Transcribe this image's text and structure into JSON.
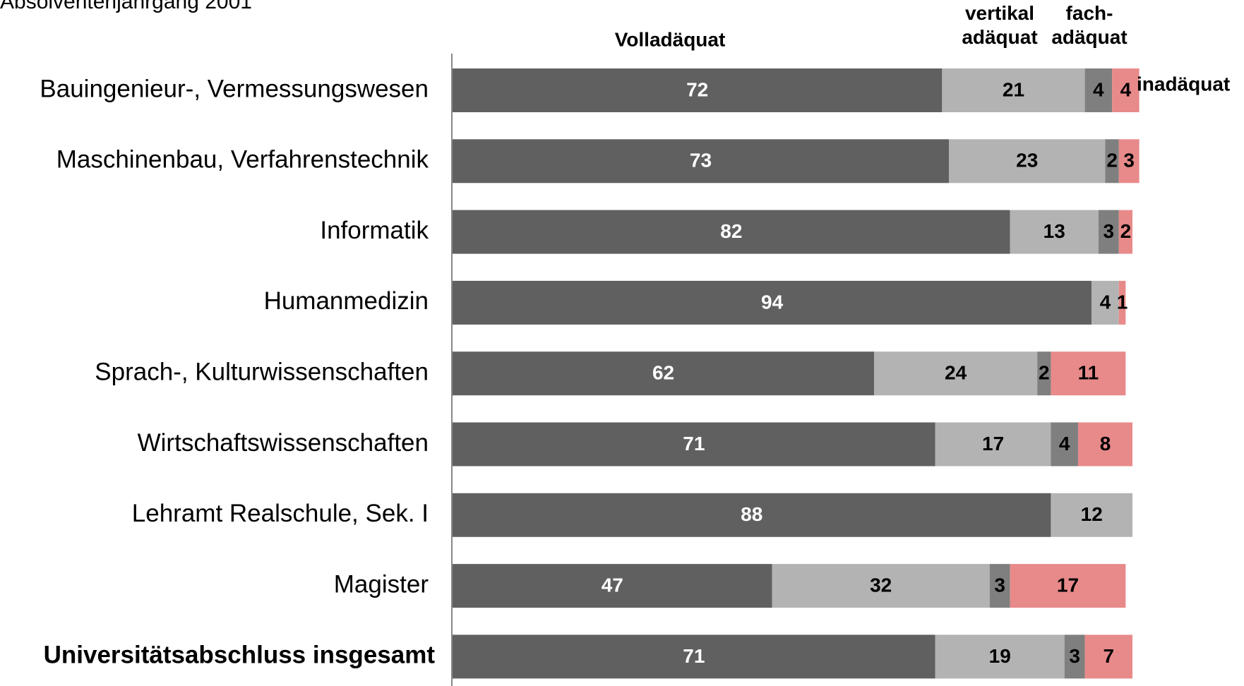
{
  "chart_data": {
    "type": "stacked_bar_horizontal",
    "title": "Absolventenjahrgang 2001",
    "categories": [
      "Bauingenieur-, Vermessungswesen",
      "Maschinenbau, Verfahrenstechnik",
      "Informatik",
      "Humanmedizin",
      "Sprach-, Kulturwissenschaften",
      "Wirtschaftswissenschaften",
      "Lehramt Realschule, Sek. I",
      "Magister",
      "Universitätsabschluss insgesamt"
    ],
    "series": [
      {
        "name": "Volladäquat",
        "color": "#606060",
        "values": [
          72,
          73,
          82,
          94,
          62,
          71,
          88,
          47,
          71
        ]
      },
      {
        "name": "vertikal adäquat",
        "color": "#b3b3b3",
        "values": [
          21,
          23,
          13,
          4,
          24,
          17,
          12,
          32,
          19
        ]
      },
      {
        "name": "fach- adäquat",
        "color": "#7f7f7f",
        "values": [
          4,
          2,
          3,
          null,
          2,
          4,
          null,
          3,
          3
        ]
      },
      {
        "name": "inadäquat",
        "color": "#e88a8a",
        "values": [
          4,
          3,
          2,
          1,
          11,
          8,
          null,
          17,
          7
        ]
      }
    ],
    "xlim": [
      0,
      100
    ]
  }
}
